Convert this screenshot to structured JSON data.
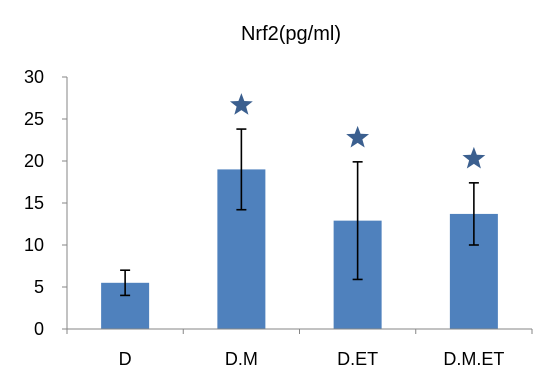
{
  "chart_data": {
    "type": "bar",
    "title": "Nrf2(pg/ml)",
    "xlabel": "",
    "ylabel": "",
    "categories": [
      "D",
      "D.M",
      "D.ET",
      "D.M.ET"
    ],
    "values": [
      5.5,
      19.0,
      12.9,
      13.7
    ],
    "error_bars": [
      1.5,
      4.8,
      7.0,
      3.7
    ],
    "significance_markers": [
      false,
      true,
      true,
      true
    ],
    "ylim": [
      0,
      30
    ],
    "yticks": [
      "0",
      "5",
      "10",
      "15",
      "20",
      "25",
      "30"
    ],
    "grid": false,
    "legend": "none",
    "colors": {
      "bar": "#4F81BD",
      "marker": "#3B5F8F",
      "axis": "#868686",
      "error": "#000000"
    },
    "marker_symbol": "★"
  }
}
